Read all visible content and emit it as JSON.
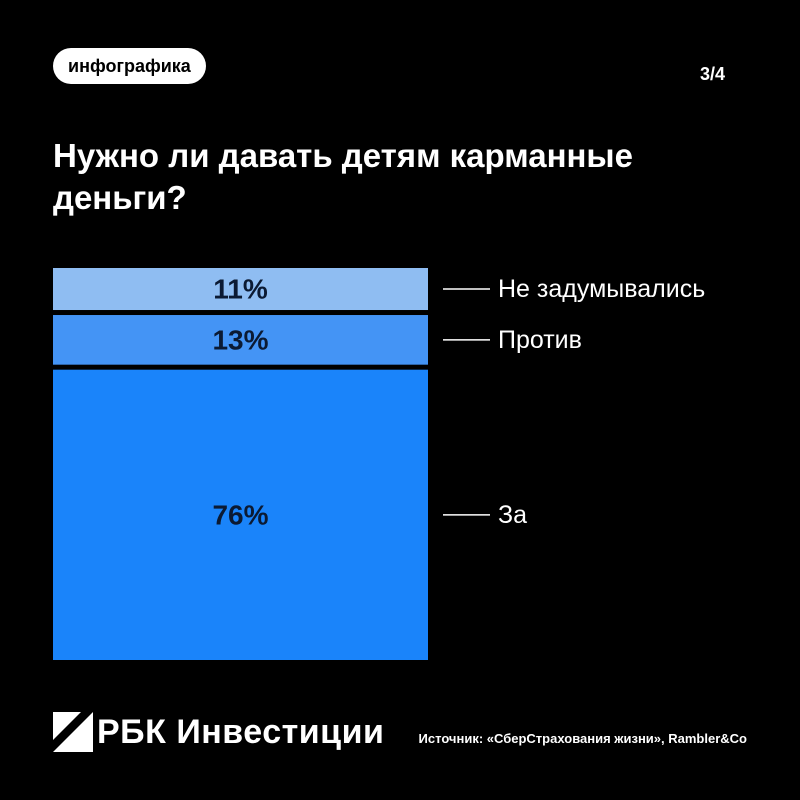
{
  "header": {
    "tag": "инфографика",
    "pager": "3/4"
  },
  "title": "Нужно ли давать детям карманные деньги?",
  "chart_data": {
    "type": "bar",
    "stacked": true,
    "categories": [
      "Не задумывались",
      "Против",
      "За"
    ],
    "values": [
      11,
      13,
      76
    ],
    "value_labels": [
      "11%",
      "13%",
      "76%"
    ],
    "unit": "%",
    "colors": [
      "#8fbdf2",
      "#4494f5",
      "#1a84fa"
    ],
    "legend_placement": "right"
  },
  "footer": {
    "brand": "РБК Инвестиции",
    "source": "Источник: «СберСтрахования жизни», Rambler&Co"
  }
}
